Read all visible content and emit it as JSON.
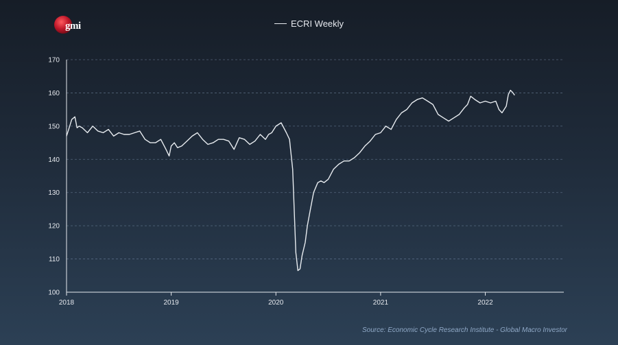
{
  "logo": {
    "text": "gmi"
  },
  "legend": {
    "label": "ECRI Weekly",
    "color": "#e8ecf0"
  },
  "source": "Source: Economic Cycle Research Institute - Global Macro Investor",
  "colors": {
    "line": "#e8ecf0",
    "grid": "#6b7f99",
    "axis": "#e6e9ee",
    "logo_red": "#c0182a"
  },
  "chart_data": {
    "type": "line",
    "title": "",
    "xlabel": "",
    "ylabel": "",
    "legend": "top-center",
    "xlim": [
      2018.0,
      2022.75
    ],
    "ylim": [
      100,
      170
    ],
    "yticks": [
      100,
      110,
      120,
      130,
      140,
      150,
      160,
      170
    ],
    "xticks": [
      2018,
      2019,
      2020,
      2021,
      2022
    ],
    "xtick_labels": [
      "2018",
      "2019",
      "2020",
      "2021",
      "2022"
    ],
    "series": [
      {
        "name": "ECRI Weekly",
        "x": [
          2018.0,
          2018.03,
          2018.05,
          2018.08,
          2018.1,
          2018.12,
          2018.15,
          2018.2,
          2018.25,
          2018.3,
          2018.35,
          2018.4,
          2018.45,
          2018.5,
          2018.55,
          2018.6,
          2018.65,
          2018.7,
          2018.75,
          2018.8,
          2018.85,
          2018.9,
          2018.95,
          2018.98,
          2019.0,
          2019.03,
          2019.06,
          2019.1,
          2019.15,
          2019.2,
          2019.25,
          2019.3,
          2019.35,
          2019.4,
          2019.45,
          2019.5,
          2019.55,
          2019.6,
          2019.65,
          2019.7,
          2019.75,
          2019.8,
          2019.85,
          2019.9,
          2019.93,
          2019.96,
          2020.0,
          2020.05,
          2020.1,
          2020.13,
          2020.16,
          2020.19,
          2020.21,
          2020.23,
          2020.25,
          2020.28,
          2020.3,
          2020.33,
          2020.36,
          2020.4,
          2020.43,
          2020.46,
          2020.5,
          2020.55,
          2020.6,
          2020.65,
          2020.7,
          2020.75,
          2020.8,
          2020.85,
          2020.9,
          2020.95,
          2021.0,
          2021.05,
          2021.1,
          2021.15,
          2021.2,
          2021.25,
          2021.3,
          2021.35,
          2021.4,
          2021.45,
          2021.5,
          2021.55,
          2021.6,
          2021.65,
          2021.7,
          2021.75,
          2021.8,
          2021.83,
          2021.86,
          2021.9,
          2021.95,
          2022.0,
          2022.05,
          2022.1,
          2022.13,
          2022.16,
          2022.2,
          2022.22,
          2022.24,
          2022.26,
          2022.28
        ],
        "values": [
          147,
          150,
          152,
          152.8,
          149.5,
          150,
          149.5,
          148,
          150,
          148.5,
          148,
          149,
          147,
          148,
          147.5,
          147.5,
          148,
          148.5,
          146,
          145,
          145,
          146,
          143,
          141,
          144,
          145,
          143.5,
          144,
          145.5,
          147,
          148,
          146,
          144.5,
          145,
          146,
          146,
          145.5,
          143,
          146.5,
          146,
          144.5,
          145.5,
          147.5,
          146,
          147.5,
          148,
          150,
          151,
          148,
          146,
          137,
          112,
          106.5,
          107,
          111,
          115,
          120,
          125,
          130,
          133,
          133.5,
          133,
          134,
          137,
          138.5,
          139.5,
          139.5,
          140.5,
          142,
          144,
          145.5,
          147.5,
          148,
          150,
          149,
          152,
          154,
          155,
          157,
          158,
          158.5,
          157.5,
          156.5,
          153.5,
          152.5,
          151.5,
          152.5,
          153.5,
          155.5,
          156.5,
          159,
          158,
          157,
          157.5,
          157,
          157.5,
          155,
          154,
          156,
          159.5,
          160.8,
          160.2,
          159.3
        ]
      }
    ]
  }
}
